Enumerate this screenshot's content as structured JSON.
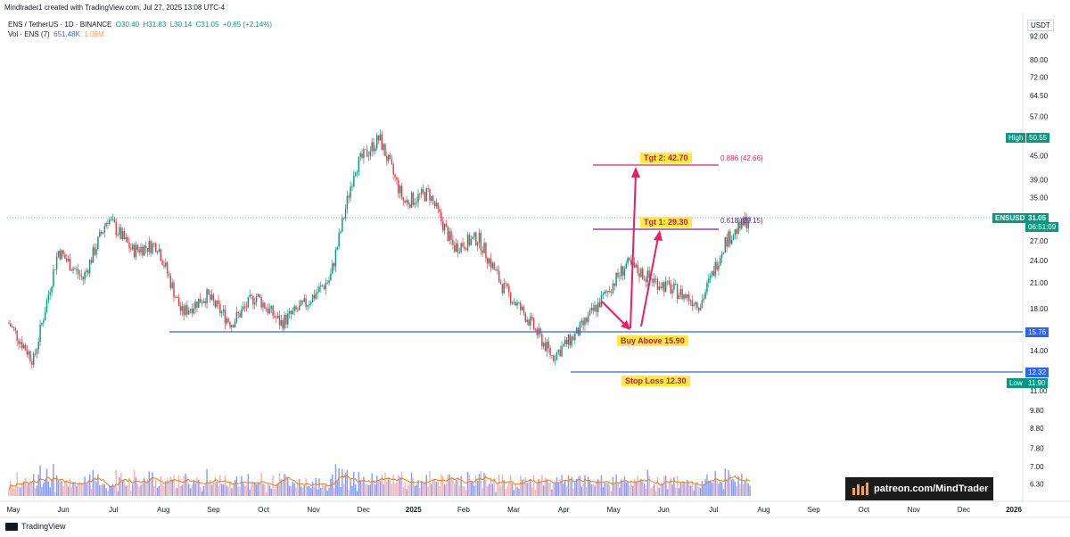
{
  "header": "Mindtrader1 created with TradingView.com, Jul 27, 2025 13:08 UTC-4",
  "legend": {
    "symbol": "ENS / TetherUS · 1D · BINANCE",
    "open": "O30.40",
    "high": "H31.83",
    "low": "L30.14",
    "close": "C31.05",
    "change": "+0.65 (+2.14%)",
    "vol_label": "Vol · ENS (7)",
    "vol_value": "651.48K",
    "vol_ma": "1.09M"
  },
  "currency": "USDT",
  "watermark": "patreon.com/MindTrader",
  "footer": "TradingView",
  "colors": {
    "up": "#089981",
    "down": "#f23645",
    "support_line": "#2962ff",
    "target_line": "#e91e63",
    "target1_line": "#7b1fa2",
    "volume_up": "#5b7bff",
    "volume_down": "#ef9a9a",
    "volume_ma": "#f57c00",
    "arrow": "#e91e63",
    "annotation_bg": "#ffeb3b",
    "annotation_text": "#c2185b"
  },
  "chart_data": {
    "type": "candlestick",
    "scale": "log",
    "x_ticks": [
      "May",
      "Jun",
      "Jul",
      "Aug",
      "Sep",
      "Oct",
      "Nov",
      "Dec",
      "2025",
      "Feb",
      "Mar",
      "Apr",
      "May",
      "Jun",
      "Jul",
      "Aug",
      "Sep",
      "Oct",
      "Nov",
      "Dec",
      "2026"
    ],
    "y_ticks": [
      6.3,
      7.0,
      7.8,
      8.8,
      9.8,
      11.0,
      14.0,
      18.0,
      21.0,
      24.0,
      27.0,
      31.0,
      35.0,
      39.0,
      45.0,
      51.0,
      57.0,
      64.5,
      72.0,
      80.0,
      92.0
    ],
    "y_ticks_shown": [
      "92.00",
      "80.00",
      "72.00",
      "64.50",
      "57.00",
      "45.00",
      "39.00",
      "35.00",
      "27.00",
      "24.00",
      "21.00",
      "18.00",
      "14.00",
      "11.00",
      "9.80",
      "8.80",
      "7.80",
      "7.00",
      "6.30"
    ],
    "monthly_path": [
      {
        "month": "May",
        "price": 16.5
      },
      {
        "month": "May",
        "price": 13.2
      },
      {
        "month": "Jun",
        "price": 25.5
      },
      {
        "month": "Jun",
        "price": 21.5
      },
      {
        "month": "Jul",
        "price": 31.0
      },
      {
        "month": "Jul",
        "price": 25.5
      },
      {
        "month": "Aug",
        "price": 26.5
      },
      {
        "month": "Aug",
        "price": 17.5
      },
      {
        "month": "Sep",
        "price": 19.5
      },
      {
        "month": "Sep",
        "price": 16.5
      },
      {
        "month": "Oct",
        "price": 19.5
      },
      {
        "month": "Oct",
        "price": 16.5
      },
      {
        "month": "Nov",
        "price": 18.5
      },
      {
        "month": "Nov",
        "price": 21.5
      },
      {
        "month": "Dec",
        "price": 42.0
      },
      {
        "month": "Dec",
        "price": 50.0
      },
      {
        "month": "2025",
        "price": 34.0
      },
      {
        "month": "2025",
        "price": 36.0
      },
      {
        "month": "Feb",
        "price": 26.0
      },
      {
        "month": "Feb",
        "price": 27.5
      },
      {
        "month": "Mar",
        "price": 20.5
      },
      {
        "month": "Mar",
        "price": 17.0
      },
      {
        "month": "Apr",
        "price": 13.5
      },
      {
        "month": "Apr",
        "price": 15.5
      },
      {
        "month": "May",
        "price": 19.0
      },
      {
        "month": "May",
        "price": 23.5
      },
      {
        "month": "Jun",
        "price": 21.5
      },
      {
        "month": "Jun",
        "price": 20.0
      },
      {
        "month": "Jul",
        "price": 18.5
      },
      {
        "month": "Jul",
        "price": 27.0
      },
      {
        "month": "Aug",
        "price": 31.05
      }
    ],
    "volume_peak_month": "Dec",
    "levels": {
      "current": {
        "label": "ENSUSDT",
        "price": "31.05",
        "countdown": "06:51:09"
      },
      "high": {
        "label": "High",
        "price": "50.55"
      },
      "low": {
        "label": "Low",
        "price": "11.90"
      },
      "support": {
        "price": "15.76"
      },
      "stop": {
        "price": "12.32"
      }
    },
    "annotations": {
      "tgt2": "Tgt 2: 42.70",
      "tgt1": "Tgt 1: 29.30",
      "buy": "Buy Above 15.90",
      "stop_loss": "Stop Loss 12.30",
      "fib_886": "0.886 (42.66)",
      "fib_618": "0.618 (29.15)"
    }
  }
}
